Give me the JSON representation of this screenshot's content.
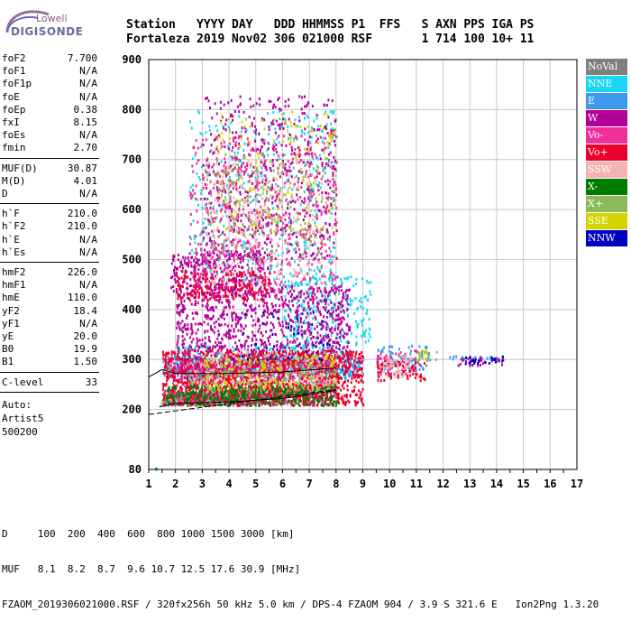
{
  "logo": {
    "line1": "Lowell",
    "line2": "DIGISONDE"
  },
  "header": {
    "labels": [
      "Station",
      "YYYY",
      "DAY",
      "DDD",
      "HHMMSS",
      "P1",
      "FFS",
      "S",
      "AXN",
      "PPS",
      "IGA",
      "PS"
    ],
    "values": [
      "Fortaleza",
      "2019",
      "Nov02",
      "306",
      "021000",
      "RSF",
      "",
      "1",
      "714",
      "100",
      "10+",
      "11"
    ]
  },
  "params_groups": [
    [
      [
        "foF2",
        "7.700"
      ],
      [
        "foF1",
        "N/A"
      ],
      [
        "foF1p",
        "N/A"
      ],
      [
        "foE",
        "N/A"
      ],
      [
        "foEp",
        "0.38"
      ],
      [
        "fxI",
        "8.15"
      ],
      [
        "foEs",
        "N/A"
      ],
      [
        "fmin",
        "2.70"
      ]
    ],
    [
      [
        "MUF(D)",
        "30.87"
      ],
      [
        "M(D)",
        "4.01"
      ],
      [
        "D",
        "N/A"
      ]
    ],
    [
      [
        "h`F",
        "210.0"
      ],
      [
        "h`F2",
        "210.0"
      ],
      [
        "h`E",
        "N/A"
      ],
      [
        "h`Es",
        "N/A"
      ]
    ],
    [
      [
        "hmF2",
        "226.0"
      ],
      [
        "hmF1",
        "N/A"
      ],
      [
        "hmE",
        "110.0"
      ],
      [
        "yF2",
        "18.4"
      ],
      [
        "yF1",
        "N/A"
      ],
      [
        "yE",
        "20.0"
      ],
      [
        "B0",
        "19.9"
      ],
      [
        "B1",
        "1.50"
      ]
    ],
    [
      [
        "C-level",
        "33"
      ]
    ]
  ],
  "auto_lines": [
    "Auto:",
    "Artist5",
    "500200"
  ],
  "legend": [
    {
      "label": "NoVal",
      "color": "#7f7f7f"
    },
    {
      "label": "NNE",
      "color": "#18d6f2"
    },
    {
      "label": "E",
      "color": "#3d9aef"
    },
    {
      "label": "W",
      "color": "#b30099"
    },
    {
      "label": "Vo-",
      "color": "#ef2f9a"
    },
    {
      "label": "Vo+",
      "color": "#ea002a"
    },
    {
      "label": "SSW",
      "color": "#f3b3b3"
    },
    {
      "label": "X-",
      "color": "#007d00"
    },
    {
      "label": "X+",
      "color": "#8cb85e"
    },
    {
      "label": "SSE",
      "color": "#d4d400"
    },
    {
      "label": "NNW",
      "color": "#0000c0"
    }
  ],
  "footer": {
    "line1": "D     100  200  400  600  800 1000 1500 3000 [km]",
    "line2": "MUF   8.1  8.2  8.7  9.6 10.7 12.5 17.6 30.9 [MHz]",
    "line3": "FZAOM_2019306021000.RSF / 320fx256h 50 kHz 5.0 km / DPS-4 FZAOM 904 / 3.9 S 321.6 E   Ion2Png 1.3.20"
  },
  "chart_data": {
    "type": "scatter",
    "title": "",
    "xlabel": "",
    "ylabel": "",
    "xlim": [
      1,
      17
    ],
    "ylim": [
      80,
      900
    ],
    "x_ticks": [
      "1",
      "2",
      "3",
      "4",
      "5",
      "6",
      "7",
      "8",
      "9",
      "10",
      "11",
      "12",
      "13",
      "14",
      "15",
      "16",
      "17"
    ],
    "y_ticks": [
      "80",
      "200",
      "300",
      "400",
      "500",
      "600",
      "700",
      "800",
      "900"
    ],
    "grid": true,
    "legend_position": "right",
    "series": [
      {
        "name": "NoVal",
        "clusters": [
          [
            1.5,
            6.0,
            210,
            240,
            0.6
          ],
          [
            2.0,
            7.5,
            215,
            235,
            0.5
          ]
        ]
      },
      {
        "name": "NNE",
        "clusters": [
          [
            2.0,
            8.5,
            260,
            330,
            0.3
          ],
          [
            6.0,
            9.3,
            330,
            470,
            0.2
          ],
          [
            2.5,
            8.0,
            450,
            800,
            0.08
          ]
        ]
      },
      {
        "name": "E",
        "clusters": [
          [
            1.5,
            9.0,
            265,
            310,
            0.6
          ],
          [
            9.5,
            11.5,
            280,
            330,
            0.3
          ],
          [
            12.2,
            14.3,
            295,
            310,
            0.3
          ]
        ]
      },
      {
        "name": "W",
        "clusters": [
          [
            2.0,
            8.5,
            280,
            450,
            0.35
          ],
          [
            1.8,
            5.5,
            430,
            520,
            0.35
          ],
          [
            3.0,
            8.0,
            500,
            830,
            0.12
          ],
          [
            12.5,
            14.2,
            290,
            310,
            0.3
          ]
        ]
      },
      {
        "name": "Vo-",
        "clusters": [
          [
            1.8,
            8.0,
            210,
            300,
            0.45
          ],
          [
            2.5,
            8.0,
            420,
            750,
            0.12
          ],
          [
            9.5,
            11.0,
            270,
            320,
            0.3
          ]
        ]
      },
      {
        "name": "Vo+",
        "clusters": [
          [
            1.5,
            9.0,
            210,
            320,
            0.55
          ],
          [
            2.0,
            5.5,
            420,
            480,
            0.3
          ],
          [
            9.5,
            11.3,
            260,
            300,
            0.35
          ]
        ]
      },
      {
        "name": "SSW",
        "clusters": [
          [
            2.5,
            8.0,
            250,
            320,
            0.15
          ],
          [
            3.0,
            7.5,
            450,
            700,
            0.08
          ],
          [
            9.7,
            10.8,
            265,
            310,
            0.3
          ]
        ]
      },
      {
        "name": "X-",
        "clusters": [
          [
            1.6,
            8.0,
            210,
            250,
            0.5
          ],
          [
            1.2,
            1.3,
            82,
            84,
            1.0
          ]
        ]
      },
      {
        "name": "X+",
        "clusters": [
          [
            2.5,
            8.0,
            240,
            300,
            0.15
          ],
          [
            3.0,
            7.5,
            500,
            700,
            0.06
          ],
          [
            11.0,
            11.8,
            300,
            320,
            0.3
          ]
        ]
      },
      {
        "name": "SSE",
        "clusters": [
          [
            3.0,
            8.0,
            240,
            310,
            0.15
          ],
          [
            3.5,
            8.0,
            550,
            800,
            0.05
          ],
          [
            11.0,
            11.5,
            300,
            320,
            0.3
          ]
        ]
      },
      {
        "name": "NNW",
        "clusters": [
          [
            12.8,
            14.3,
            293,
            308,
            0.35
          ],
          [
            4.0,
            8.0,
            300,
            400,
            0.04
          ]
        ]
      }
    ],
    "trace_lines": [
      {
        "name": "dashed",
        "points": [
          [
            1,
            190
          ],
          [
            8,
            240
          ]
        ]
      },
      {
        "name": "upper",
        "points": [
          [
            1,
            265
          ],
          [
            1.5,
            280
          ],
          [
            2,
            272
          ],
          [
            4,
            272
          ],
          [
            6,
            275
          ],
          [
            8,
            283
          ]
        ]
      },
      {
        "name": "lower",
        "points": [
          [
            1.4,
            205
          ],
          [
            2,
            212
          ],
          [
            4,
            215
          ],
          [
            6,
            222
          ],
          [
            7,
            230
          ],
          [
            8,
            238
          ]
        ]
      }
    ]
  }
}
